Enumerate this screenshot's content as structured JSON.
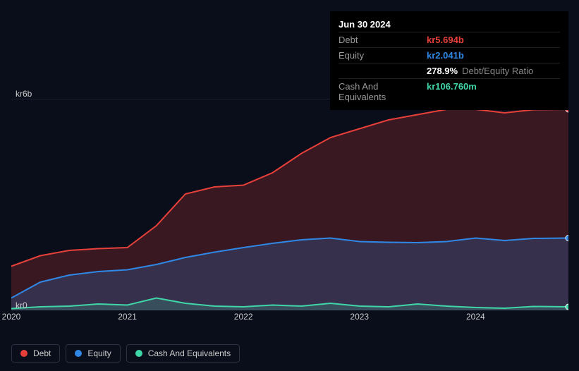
{
  "tooltip": {
    "date": "Jun 30 2024",
    "rows": [
      {
        "label": "Debt",
        "value": "kr5.694b",
        "color": "#e7403a"
      },
      {
        "label": "Equity",
        "value": "kr2.041b",
        "color": "#2f88e6"
      },
      {
        "label": "",
        "value": "278.9%",
        "extra": "Debt/Equity Ratio",
        "color": "#ffffff"
      },
      {
        "label": "Cash And Equivalents",
        "value": "kr106.760m",
        "color": "#3fd6a8"
      }
    ]
  },
  "chart": {
    "type": "area",
    "background": "#0a0e1a",
    "grid_color": "#2a3142",
    "xlim": [
      2020,
      2024.8
    ],
    "ylim": [
      0,
      6
    ],
    "y_ticks": [
      {
        "v": 0,
        "label": "kr0"
      },
      {
        "v": 6,
        "label": "kr6b"
      }
    ],
    "x_ticks": [
      {
        "v": 2020,
        "label": "2020"
      },
      {
        "v": 2021,
        "label": "2021"
      },
      {
        "v": 2022,
        "label": "2022"
      },
      {
        "v": 2023,
        "label": "2023"
      },
      {
        "v": 2024,
        "label": "2024"
      }
    ],
    "series": [
      {
        "name": "Debt",
        "color": "#e7403a",
        "fill": "rgba(231,64,58,0.22)",
        "x": [
          2020,
          2020.25,
          2020.5,
          2020.75,
          2021,
          2021.25,
          2021.5,
          2021.75,
          2022,
          2022.25,
          2022.5,
          2022.75,
          2023,
          2023.25,
          2023.5,
          2023.75,
          2024,
          2024.25,
          2024.5,
          2024.8
        ],
        "y": [
          1.25,
          1.55,
          1.7,
          1.75,
          1.78,
          2.4,
          3.3,
          3.5,
          3.55,
          3.9,
          4.45,
          4.9,
          5.15,
          5.4,
          5.55,
          5.7,
          5.7,
          5.6,
          5.69,
          5.7
        ]
      },
      {
        "name": "Equity",
        "color": "#2f88e6",
        "fill": "rgba(47,136,230,0.22)",
        "x": [
          2020,
          2020.25,
          2020.5,
          2020.75,
          2021,
          2021.25,
          2021.5,
          2021.75,
          2022,
          2022.25,
          2022.5,
          2022.75,
          2023,
          2023.25,
          2023.5,
          2023.75,
          2024,
          2024.25,
          2024.5,
          2024.8
        ],
        "y": [
          0.35,
          0.8,
          1.0,
          1.1,
          1.15,
          1.3,
          1.5,
          1.65,
          1.78,
          1.9,
          2.0,
          2.05,
          1.95,
          1.93,
          1.92,
          1.95,
          2.05,
          1.98,
          2.04,
          2.05
        ]
      },
      {
        "name": "Cash And Equivalents",
        "color": "#3fd6a8",
        "fill": "rgba(63,214,168,0.18)",
        "x": [
          2020,
          2020.25,
          2020.5,
          2020.75,
          2021,
          2021.25,
          2021.5,
          2021.75,
          2022,
          2022.25,
          2022.5,
          2022.75,
          2023,
          2023.25,
          2023.5,
          2023.75,
          2024,
          2024.25,
          2024.5,
          2024.8
        ],
        "y": [
          0.05,
          0.1,
          0.12,
          0.18,
          0.15,
          0.35,
          0.2,
          0.12,
          0.1,
          0.15,
          0.12,
          0.2,
          0.12,
          0.1,
          0.18,
          0.12,
          0.08,
          0.06,
          0.11,
          0.1
        ]
      }
    ],
    "marker_x": 2024.8
  },
  "legend": [
    {
      "label": "Debt",
      "color": "#e7403a"
    },
    {
      "label": "Equity",
      "color": "#2f88e6"
    },
    {
      "label": "Cash And Equivalents",
      "color": "#3fd6a8"
    }
  ]
}
